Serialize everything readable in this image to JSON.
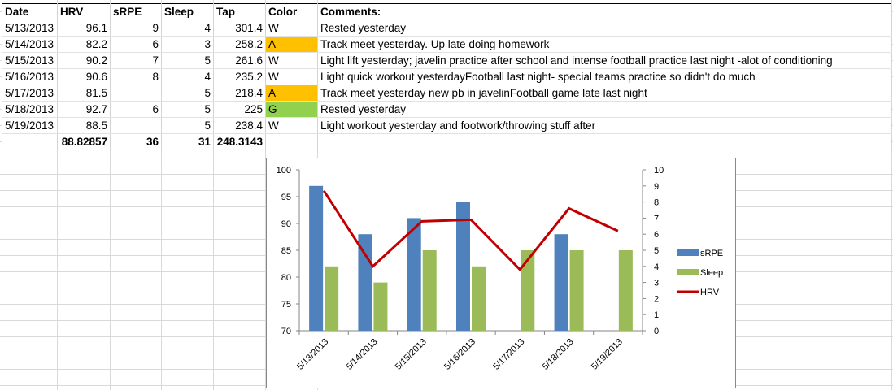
{
  "table": {
    "headers": [
      "Date",
      "HRV",
      "sRPE",
      "Sleep",
      "Tap",
      "Color",
      "Comments:"
    ],
    "rows": [
      {
        "date": "5/13/2013",
        "hrv": "96.1",
        "srpe": "9",
        "sleep": "4",
        "tap": "301.4",
        "color": "W",
        "comment": "Rested yesterday"
      },
      {
        "date": "5/14/2013",
        "hrv": "82.2",
        "srpe": "6",
        "sleep": "3",
        "tap": "258.2",
        "color": "A",
        "comment": "Track meet yesterday. Up late doing homework"
      },
      {
        "date": "5/15/2013",
        "hrv": "90.2",
        "srpe": "7",
        "sleep": "5",
        "tap": "261.6",
        "color": "W",
        "comment": "Light lift yesterday; javelin practice after school and intense football practice last night -alot of conditioning"
      },
      {
        "date": "5/16/2013",
        "hrv": "90.6",
        "srpe": "8",
        "sleep": "4",
        "tap": "235.2",
        "color": "W",
        "comment": "Light quick workout yesterdayFootball last night- special teams practice so didn't do much"
      },
      {
        "date": "5/17/2013",
        "hrv": "81.5",
        "srpe": "",
        "sleep": "5",
        "tap": "218.4",
        "color": "A",
        "comment": "Track meet yesterday new pb in javelinFootball game late last night"
      },
      {
        "date": "5/18/2013",
        "hrv": "92.7",
        "srpe": "6",
        "sleep": "5",
        "tap": "225",
        "color": "G",
        "comment": "Rested yesterday"
      },
      {
        "date": "5/19/2013",
        "hrv": "88.5",
        "srpe": "",
        "sleep": "5",
        "tap": "238.4",
        "color": "W",
        "comment": "Light workout yesterday and footwork/throwing stuff after"
      }
    ],
    "totals": {
      "date": "",
      "hrv": "88.82857",
      "srpe": "36",
      "sleep": "31",
      "tap": "248.3143",
      "color": "",
      "comment": ""
    }
  },
  "colors": {
    "A": "#ffc000",
    "G": "#92d050",
    "W": "#ffffff",
    "srpe": "#4f81bd",
    "sleep": "#9bbb59",
    "hrv": "#c00000"
  },
  "chart_data": {
    "type": "bar",
    "categories": [
      "5/13/2013",
      "5/14/2013",
      "5/15/2013",
      "5/16/2013",
      "5/17/2013",
      "5/18/2013",
      "5/19/2013"
    ],
    "series": [
      {
        "name": "sRPE",
        "kind": "bar",
        "axis": "left",
        "values": [
          97,
          88,
          91,
          94,
          null,
          88,
          null
        ]
      },
      {
        "name": "Sleep",
        "kind": "bar",
        "axis": "left",
        "values": [
          82,
          79,
          85,
          82,
          85,
          85,
          85
        ]
      },
      {
        "name": "HRV",
        "kind": "line",
        "axis": "right",
        "values": [
          8.7,
          4.0,
          6.8,
          6.9,
          3.8,
          7.6,
          6.2
        ]
      }
    ],
    "left_axis": {
      "min": 70,
      "max": 100,
      "ticks": [
        "100",
        "95",
        "90",
        "85",
        "80",
        "75",
        "70"
      ]
    },
    "right_axis": {
      "min": 0,
      "max": 10,
      "ticks": [
        "10",
        "9",
        "8",
        "7",
        "6",
        "5",
        "4",
        "3",
        "2",
        "1",
        "0"
      ]
    },
    "legend": [
      "sRPE",
      "Sleep",
      "HRV"
    ],
    "legend_position": "right",
    "grid": false
  }
}
